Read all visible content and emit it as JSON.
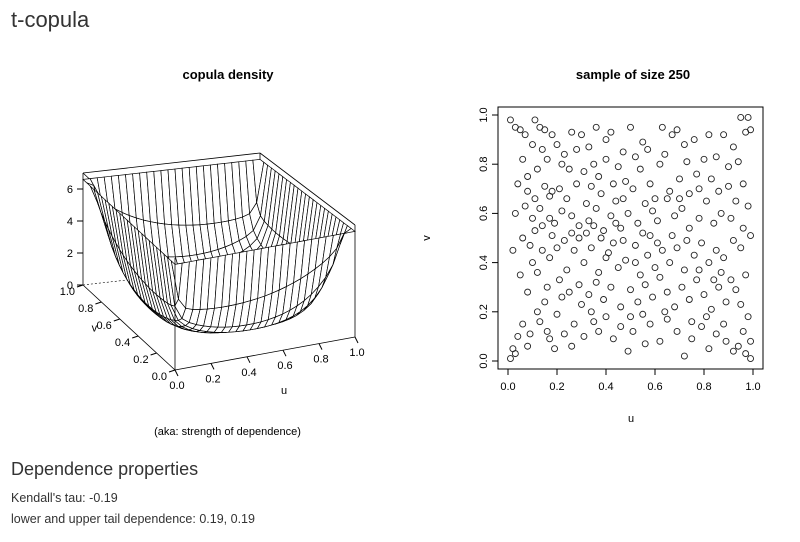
{
  "page": {
    "title": "t-copula"
  },
  "density_plot": {
    "title": "copula density",
    "caption": "(aka: strength of dependence)",
    "u_label": "u",
    "v_label": "v",
    "u_ticks": [
      "0.0",
      "0.2",
      "0.4",
      "0.6",
      "0.8",
      "1.0"
    ],
    "v_ticks": [
      "0.0",
      "0.2",
      "0.4",
      "0.6",
      "0.8",
      "1.0"
    ],
    "z_ticks": [
      "0",
      "2",
      "4",
      "6"
    ]
  },
  "properties": {
    "heading": "Dependence properties",
    "kendall_label": "Kendall's tau:",
    "kendall_value": "-0.19",
    "tail_label": "lower and upper tail dependence:",
    "tail_value": "0.19, 0.19"
  },
  "chart_data": [
    {
      "type": "surface",
      "title": "copula density",
      "xlabel": "u",
      "ylabel": "v",
      "xlim": [
        0,
        1
      ],
      "ylim": [
        0,
        1
      ],
      "zlim": [
        0,
        7
      ],
      "z_ticks": [
        0,
        2,
        4,
        6
      ],
      "grid_size": 25
    },
    {
      "type": "scatter",
      "title": "sample of size 250",
      "xlabel": "u",
      "ylabel": "v",
      "xlim": [
        0,
        1
      ],
      "ylim": [
        0,
        1
      ],
      "x_ticks": [
        0.0,
        0.2,
        0.4,
        0.6,
        0.8,
        1.0
      ],
      "y_ticks": [
        0.0,
        0.2,
        0.4,
        0.6,
        0.8,
        1.0
      ],
      "marker": "open-circle",
      "points": [
        [
          0.01,
          0.98
        ],
        [
          0.03,
          0.95
        ],
        [
          0.05,
          0.94
        ],
        [
          0.07,
          0.92
        ],
        [
          0.11,
          0.98
        ],
        [
          0.13,
          0.95
        ],
        [
          0.15,
          0.94
        ],
        [
          0.1,
          0.88
        ],
        [
          0.14,
          0.86
        ],
        [
          0.18,
          0.92
        ],
        [
          0.12,
          0.78
        ],
        [
          0.16,
          0.82
        ],
        [
          0.22,
          0.8
        ],
        [
          0.23,
          0.84
        ],
        [
          0.26,
          0.93
        ],
        [
          0.3,
          0.92
        ],
        [
          0.33,
          0.87
        ],
        [
          0.36,
          0.95
        ],
        [
          0.4,
          0.9
        ],
        [
          0.42,
          0.93
        ],
        [
          0.47,
          0.85
        ],
        [
          0.5,
          0.95
        ],
        [
          0.55,
          0.89
        ],
        [
          0.63,
          0.95
        ],
        [
          0.67,
          0.92
        ],
        [
          0.69,
          0.94
        ],
        [
          0.72,
          0.88
        ],
        [
          0.76,
          0.9
        ],
        [
          0.82,
          0.92
        ],
        [
          0.88,
          0.92
        ],
        [
          0.92,
          0.87
        ],
        [
          0.95,
          0.99
        ],
        [
          0.98,
          0.99
        ],
        [
          0.99,
          0.94
        ],
        [
          0.97,
          0.93
        ],
        [
          0.94,
          0.81
        ],
        [
          0.9,
          0.79
        ],
        [
          0.85,
          0.83
        ],
        [
          0.8,
          0.82
        ],
        [
          0.77,
          0.76
        ],
        [
          0.73,
          0.81
        ],
        [
          0.7,
          0.74
        ],
        [
          0.66,
          0.69
        ],
        [
          0.62,
          0.8
        ],
        [
          0.58,
          0.72
        ],
        [
          0.54,
          0.78
        ],
        [
          0.51,
          0.7
        ],
        [
          0.48,
          0.73
        ],
        [
          0.45,
          0.79
        ],
        [
          0.43,
          0.72
        ],
        [
          0.4,
          0.82
        ],
        [
          0.37,
          0.75
        ],
        [
          0.35,
          0.8
        ],
        [
          0.34,
          0.71
        ],
        [
          0.31,
          0.77
        ],
        [
          0.28,
          0.72
        ],
        [
          0.25,
          0.78
        ],
        [
          0.21,
          0.7
        ],
        [
          0.18,
          0.69
        ],
        [
          0.15,
          0.71
        ],
        [
          0.08,
          0.69
        ],
        [
          0.11,
          0.66
        ],
        [
          0.17,
          0.67
        ],
        [
          0.03,
          0.6
        ],
        [
          0.13,
          0.62
        ],
        [
          0.17,
          0.58
        ],
        [
          0.19,
          0.56
        ],
        [
          0.22,
          0.61
        ],
        [
          0.26,
          0.59
        ],
        [
          0.29,
          0.55
        ],
        [
          0.33,
          0.57
        ],
        [
          0.36,
          0.62
        ],
        [
          0.39,
          0.53
        ],
        [
          0.42,
          0.59
        ],
        [
          0.46,
          0.54
        ],
        [
          0.49,
          0.6
        ],
        [
          0.53,
          0.56
        ],
        [
          0.56,
          0.64
        ],
        [
          0.59,
          0.61
        ],
        [
          0.61,
          0.57
        ],
        [
          0.65,
          0.66
        ],
        [
          0.68,
          0.59
        ],
        [
          0.71,
          0.62
        ],
        [
          0.74,
          0.54
        ],
        [
          0.78,
          0.58
        ],
        [
          0.81,
          0.65
        ],
        [
          0.84,
          0.56
        ],
        [
          0.87,
          0.6
        ],
        [
          0.91,
          0.58
        ],
        [
          0.96,
          0.54
        ],
        [
          0.99,
          0.51
        ],
        [
          0.95,
          0.46
        ],
        [
          0.92,
          0.49
        ],
        [
          0.88,
          0.42
        ],
        [
          0.85,
          0.45
        ],
        [
          0.82,
          0.4
        ],
        [
          0.79,
          0.48
        ],
        [
          0.76,
          0.43
        ],
        [
          0.72,
          0.37
        ],
        [
          0.69,
          0.46
        ],
        [
          0.66,
          0.4
        ],
        [
          0.63,
          0.45
        ],
        [
          0.6,
          0.38
        ],
        [
          0.57,
          0.43
        ],
        [
          0.54,
          0.35
        ],
        [
          0.52,
          0.47
        ],
        [
          0.48,
          0.41
        ],
        [
          0.45,
          0.38
        ],
        [
          0.43,
          0.48
        ],
        [
          0.4,
          0.42
        ],
        [
          0.37,
          0.36
        ],
        [
          0.34,
          0.46
        ],
        [
          0.31,
          0.4
        ],
        [
          0.27,
          0.45
        ],
        [
          0.24,
          0.37
        ],
        [
          0.2,
          0.46
        ],
        [
          0.17,
          0.42
        ],
        [
          0.14,
          0.45
        ],
        [
          0.11,
          0.53
        ],
        [
          0.09,
          0.47
        ],
        [
          0.12,
          0.36
        ],
        [
          0.16,
          0.3
        ],
        [
          0.21,
          0.33
        ],
        [
          0.25,
          0.28
        ],
        [
          0.29,
          0.31
        ],
        [
          0.33,
          0.27
        ],
        [
          0.36,
          0.32
        ],
        [
          0.39,
          0.25
        ],
        [
          0.42,
          0.3
        ],
        [
          0.46,
          0.22
        ],
        [
          0.5,
          0.29
        ],
        [
          0.53,
          0.24
        ],
        [
          0.56,
          0.31
        ],
        [
          0.59,
          0.26
        ],
        [
          0.62,
          0.34
        ],
        [
          0.65,
          0.28
        ],
        [
          0.68,
          0.22
        ],
        [
          0.71,
          0.3
        ],
        [
          0.74,
          0.25
        ],
        [
          0.77,
          0.33
        ],
        [
          0.8,
          0.27
        ],
        [
          0.83,
          0.21
        ],
        [
          0.86,
          0.3
        ],
        [
          0.89,
          0.24
        ],
        [
          0.93,
          0.29
        ],
        [
          0.97,
          0.35
        ],
        [
          0.95,
          0.23
        ],
        [
          0.98,
          0.18
        ],
        [
          0.96,
          0.12
        ],
        [
          0.99,
          0.08
        ],
        [
          0.94,
          0.06
        ],
        [
          0.97,
          0.03
        ],
        [
          0.99,
          0.01
        ],
        [
          0.92,
          0.04
        ],
        [
          0.89,
          0.08
        ],
        [
          0.85,
          0.11
        ],
        [
          0.82,
          0.05
        ],
        [
          0.79,
          0.14
        ],
        [
          0.75,
          0.09
        ],
        [
          0.72,
          0.02
        ],
        [
          0.69,
          0.12
        ],
        [
          0.65,
          0.17
        ],
        [
          0.62,
          0.08
        ],
        [
          0.58,
          0.15
        ],
        [
          0.55,
          0.19
        ],
        [
          0.51,
          0.12
        ],
        [
          0.49,
          0.04
        ],
        [
          0.46,
          0.14
        ],
        [
          0.43,
          0.09
        ],
        [
          0.4,
          0.18
        ],
        [
          0.37,
          0.12
        ],
        [
          0.34,
          0.2
        ],
        [
          0.31,
          0.1
        ],
        [
          0.27,
          0.15
        ],
        [
          0.23,
          0.11
        ],
        [
          0.2,
          0.19
        ],
        [
          0.17,
          0.09
        ],
        [
          0.13,
          0.16
        ],
        [
          0.09,
          0.11
        ],
        [
          0.06,
          0.15
        ],
        [
          0.04,
          0.1
        ],
        [
          0.02,
          0.05
        ],
        [
          0.01,
          0.01
        ],
        [
          0.03,
          0.03
        ],
        [
          0.08,
          0.06
        ],
        [
          0.12,
          0.2
        ],
        [
          0.15,
          0.24
        ],
        [
          0.19,
          0.05
        ],
        [
          0.26,
          0.06
        ],
        [
          0.3,
          0.23
        ],
        [
          0.05,
          0.35
        ],
        [
          0.08,
          0.28
        ],
        [
          0.1,
          0.4
        ],
        [
          0.06,
          0.5
        ],
        [
          0.02,
          0.45
        ],
        [
          0.04,
          0.72
        ],
        [
          0.06,
          0.82
        ],
        [
          0.08,
          0.75
        ],
        [
          0.2,
          0.88
        ],
        [
          0.24,
          0.66
        ],
        [
          0.28,
          0.86
        ],
        [
          0.32,
          0.64
        ],
        [
          0.38,
          0.68
        ],
        [
          0.44,
          0.65
        ],
        [
          0.47,
          0.66
        ],
        [
          0.52,
          0.83
        ],
        [
          0.57,
          0.86
        ],
        [
          0.6,
          0.66
        ],
        [
          0.64,
          0.84
        ],
        [
          0.7,
          0.66
        ],
        [
          0.74,
          0.68
        ],
        [
          0.78,
          0.7
        ],
        [
          0.83,
          0.74
        ],
        [
          0.86,
          0.69
        ],
        [
          0.9,
          0.71
        ],
        [
          0.93,
          0.65
        ],
        [
          0.96,
          0.72
        ],
        [
          0.98,
          0.63
        ],
        [
          0.91,
          0.33
        ],
        [
          0.87,
          0.36
        ],
        [
          0.84,
          0.33
        ],
        [
          0.81,
          0.18
        ],
        [
          0.78,
          0.37
        ],
        [
          0.75,
          0.16
        ],
        [
          0.73,
          0.49
        ],
        [
          0.67,
          0.51
        ],
        [
          0.64,
          0.2
        ],
        [
          0.61,
          0.48
        ],
        [
          0.58,
          0.51
        ],
        [
          0.55,
          0.52
        ],
        [
          0.52,
          0.4
        ],
        [
          0.5,
          0.18
        ],
        [
          0.47,
          0.49
        ],
        [
          0.44,
          0.56
        ],
        [
          0.41,
          0.44
        ],
        [
          0.38,
          0.5
        ],
        [
          0.35,
          0.55
        ],
        [
          0.32,
          0.52
        ],
        [
          0.29,
          0.5
        ],
        [
          0.26,
          0.52
        ],
        [
          0.23,
          0.49
        ],
        [
          0.18,
          0.51
        ],
        [
          0.14,
          0.55
        ],
        [
          0.1,
          0.58
        ],
        [
          0.07,
          0.63
        ],
        [
          0.16,
          0.12
        ],
        [
          0.22,
          0.26
        ],
        [
          0.35,
          0.16
        ],
        [
          0.56,
          0.07
        ],
        [
          0.88,
          0.15
        ]
      ]
    }
  ]
}
